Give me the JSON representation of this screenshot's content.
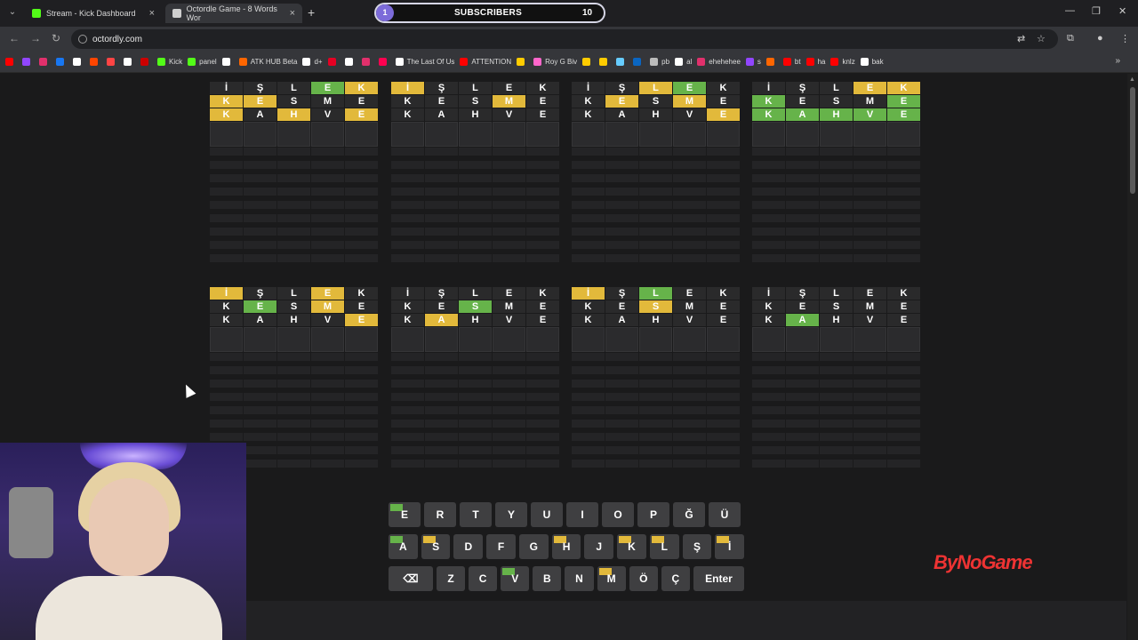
{
  "browser": {
    "tabs": [
      {
        "title": "Stream - Kick Dashboard",
        "favicon_color": "#53fc18"
      },
      {
        "title": "Octordle Game - 8 Words Wor",
        "favicon_color": "#cfcfcf"
      }
    ],
    "url": "octordly.com",
    "subscribers": {
      "left": "1",
      "title": "SUBSCRIBERS",
      "right": "10"
    }
  },
  "bookmarks": [
    {
      "label": "",
      "color": "#ff0000"
    },
    {
      "label": "",
      "color": "#9146ff"
    },
    {
      "label": "",
      "color": "#e1306c"
    },
    {
      "label": "",
      "color": "#1877f2"
    },
    {
      "label": "",
      "color": "#ffffff"
    },
    {
      "label": "",
      "color": "#ff4500"
    },
    {
      "label": "",
      "color": "#ff4444"
    },
    {
      "label": "",
      "color": "#ffffff"
    },
    {
      "label": "",
      "color": "#cc0000"
    },
    {
      "label": "Kick",
      "color": "#53fc18"
    },
    {
      "label": "panel",
      "color": "#53fc18"
    },
    {
      "label": "",
      "color": "#ffffff"
    },
    {
      "label": "ATK HUB Beta",
      "color": "#ff6600"
    },
    {
      "label": "d+",
      "color": "#ffffff"
    },
    {
      "label": "",
      "color": "#e60023"
    },
    {
      "label": "",
      "color": "#ffffff"
    },
    {
      "label": "",
      "color": "#e1306c"
    },
    {
      "label": "",
      "color": "#ff0050"
    },
    {
      "label": "The Last Of Us",
      "color": "#ffffff"
    },
    {
      "label": "ATTENTION",
      "color": "#ff0000"
    },
    {
      "label": "",
      "color": "#ffcc00"
    },
    {
      "label": "Roy G Biv",
      "color": "#ff66cc"
    },
    {
      "label": "",
      "color": "#ffcc00"
    },
    {
      "label": "",
      "color": "#ffcc00"
    },
    {
      "label": "",
      "color": "#66ccff"
    },
    {
      "label": "",
      "color": "#0a66c2"
    },
    {
      "label": "pb",
      "color": "#bbbbbb"
    },
    {
      "label": "al",
      "color": "#ffffff"
    },
    {
      "label": "ehehehee",
      "color": "#e1306c"
    },
    {
      "label": "s",
      "color": "#9146ff"
    },
    {
      "label": "",
      "color": "#ff6600"
    },
    {
      "label": "bt",
      "color": "#ff0000"
    },
    {
      "label": "ha",
      "color": "#ff0000"
    },
    {
      "label": "knlz",
      "color": "#ff0000"
    },
    {
      "label": "bak",
      "color": "#ffffff"
    }
  ],
  "boards": [
    {
      "rows": [
        [
          [
            "İ",
            "n"
          ],
          [
            "Ş",
            "n"
          ],
          [
            "L",
            "n"
          ],
          [
            "E",
            "g"
          ],
          [
            "K",
            "y"
          ]
        ],
        [
          [
            "K",
            "y"
          ],
          [
            "E",
            "y"
          ],
          [
            "S",
            "n"
          ],
          [
            "M",
            "n"
          ],
          [
            "E",
            "n"
          ]
        ],
        [
          [
            "K",
            "y"
          ],
          [
            "A",
            "n"
          ],
          [
            "H",
            "y"
          ],
          [
            "V",
            "n"
          ],
          [
            "E",
            "y"
          ]
        ]
      ]
    },
    {
      "rows": [
        [
          [
            "İ",
            "y"
          ],
          [
            "Ş",
            "n"
          ],
          [
            "L",
            "n"
          ],
          [
            "E",
            "n"
          ],
          [
            "K",
            "n"
          ]
        ],
        [
          [
            "K",
            "n"
          ],
          [
            "E",
            "n"
          ],
          [
            "S",
            "n"
          ],
          [
            "M",
            "y"
          ],
          [
            "E",
            "n"
          ]
        ],
        [
          [
            "K",
            "n"
          ],
          [
            "A",
            "n"
          ],
          [
            "H",
            "n"
          ],
          [
            "V",
            "n"
          ],
          [
            "E",
            "n"
          ]
        ]
      ]
    },
    {
      "rows": [
        [
          [
            "İ",
            "n"
          ],
          [
            "Ş",
            "n"
          ],
          [
            "L",
            "y"
          ],
          [
            "E",
            "g"
          ],
          [
            "K",
            "n"
          ]
        ],
        [
          [
            "K",
            "n"
          ],
          [
            "E",
            "y"
          ],
          [
            "S",
            "n"
          ],
          [
            "M",
            "y"
          ],
          [
            "E",
            "n"
          ]
        ],
        [
          [
            "K",
            "n"
          ],
          [
            "A",
            "n"
          ],
          [
            "H",
            "n"
          ],
          [
            "V",
            "n"
          ],
          [
            "E",
            "y"
          ]
        ]
      ]
    },
    {
      "rows": [
        [
          [
            "İ",
            "n"
          ],
          [
            "Ş",
            "n"
          ],
          [
            "L",
            "n"
          ],
          [
            "E",
            "y"
          ],
          [
            "K",
            "y"
          ]
        ],
        [
          [
            "K",
            "g"
          ],
          [
            "E",
            "n"
          ],
          [
            "S",
            "n"
          ],
          [
            "M",
            "n"
          ],
          [
            "E",
            "g"
          ]
        ],
        [
          [
            "K",
            "g"
          ],
          [
            "A",
            "g"
          ],
          [
            "H",
            "g"
          ],
          [
            "V",
            "g"
          ],
          [
            "E",
            "g"
          ]
        ]
      ]
    },
    {
      "rows": [
        [
          [
            "İ",
            "y"
          ],
          [
            "Ş",
            "n"
          ],
          [
            "L",
            "n"
          ],
          [
            "E",
            "y"
          ],
          [
            "K",
            "n"
          ]
        ],
        [
          [
            "K",
            "n"
          ],
          [
            "E",
            "g"
          ],
          [
            "S",
            "n"
          ],
          [
            "M",
            "y"
          ],
          [
            "E",
            "n"
          ]
        ],
        [
          [
            "K",
            "n"
          ],
          [
            "A",
            "n"
          ],
          [
            "H",
            "n"
          ],
          [
            "V",
            "n"
          ],
          [
            "E",
            "y"
          ]
        ]
      ]
    },
    {
      "rows": [
        [
          [
            "İ",
            "n"
          ],
          [
            "Ş",
            "n"
          ],
          [
            "L",
            "n"
          ],
          [
            "E",
            "n"
          ],
          [
            "K",
            "n"
          ]
        ],
        [
          [
            "K",
            "n"
          ],
          [
            "E",
            "n"
          ],
          [
            "S",
            "g"
          ],
          [
            "M",
            "n"
          ],
          [
            "E",
            "n"
          ]
        ],
        [
          [
            "K",
            "n"
          ],
          [
            "A",
            "y"
          ],
          [
            "H",
            "n"
          ],
          [
            "V",
            "n"
          ],
          [
            "E",
            "n"
          ]
        ]
      ]
    },
    {
      "rows": [
        [
          [
            "İ",
            "y"
          ],
          [
            "Ş",
            "n"
          ],
          [
            "L",
            "g"
          ],
          [
            "E",
            "n"
          ],
          [
            "K",
            "n"
          ]
        ],
        [
          [
            "K",
            "n"
          ],
          [
            "E",
            "n"
          ],
          [
            "S",
            "y"
          ],
          [
            "M",
            "n"
          ],
          [
            "E",
            "n"
          ]
        ],
        [
          [
            "K",
            "n"
          ],
          [
            "A",
            "n"
          ],
          [
            "H",
            "n"
          ],
          [
            "V",
            "n"
          ],
          [
            "E",
            "n"
          ]
        ]
      ]
    },
    {
      "rows": [
        [
          [
            "İ",
            "n"
          ],
          [
            "Ş",
            "n"
          ],
          [
            "L",
            "n"
          ],
          [
            "E",
            "n"
          ],
          [
            "K",
            "n"
          ]
        ],
        [
          [
            "K",
            "n"
          ],
          [
            "E",
            "n"
          ],
          [
            "S",
            "n"
          ],
          [
            "M",
            "n"
          ],
          [
            "E",
            "n"
          ]
        ],
        [
          [
            "K",
            "n"
          ],
          [
            "A",
            "g"
          ],
          [
            "H",
            "n"
          ],
          [
            "V",
            "n"
          ],
          [
            "E",
            "n"
          ]
        ]
      ]
    }
  ],
  "keyboard": {
    "row1": [
      {
        "k": "E",
        "m": "g"
      },
      {
        "k": "R"
      },
      {
        "k": "T"
      },
      {
        "k": "Y"
      },
      {
        "k": "U"
      },
      {
        "k": "I"
      },
      {
        "k": "O"
      },
      {
        "k": "P"
      },
      {
        "k": "Ğ"
      },
      {
        "k": "Ü"
      }
    ],
    "row2": [
      {
        "k": "A",
        "m": "g"
      },
      {
        "k": "S",
        "m": "y"
      },
      {
        "k": "D"
      },
      {
        "k": "F"
      },
      {
        "k": "G"
      },
      {
        "k": "H",
        "m": "y"
      },
      {
        "k": "J"
      },
      {
        "k": "K",
        "m": "y"
      },
      {
        "k": "L",
        "m": "y"
      },
      {
        "k": "Ş"
      },
      {
        "k": "İ",
        "m": "y"
      }
    ],
    "row3": [
      {
        "k": "⌫",
        "cls": "bk"
      },
      {
        "k": "Z"
      },
      {
        "k": "C"
      },
      {
        "k": "V",
        "m": "g"
      },
      {
        "k": "B"
      },
      {
        "k": "N"
      },
      {
        "k": "M",
        "m": "y"
      },
      {
        "k": "Ö"
      },
      {
        "k": "Ç"
      },
      {
        "k": "Enter",
        "cls": "enter"
      }
    ]
  },
  "watermark": "ByNoGame"
}
